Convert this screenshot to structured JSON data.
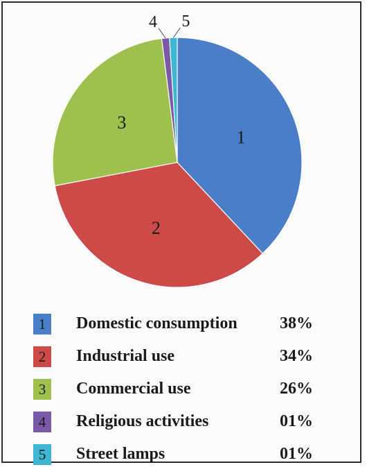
{
  "chart_data": {
    "type": "pie",
    "title": "",
    "slices": [
      {
        "id": "1",
        "label": "Domestic consumption",
        "value": 38,
        "value_label": "38%",
        "color": "#4a7ec9"
      },
      {
        "id": "2",
        "label": "Industrial use",
        "value": 34,
        "value_label": "34%",
        "color": "#cc4a48"
      },
      {
        "id": "3",
        "label": "Commercial use",
        "value": 26,
        "value_label": "26%",
        "color": "#9dc04e"
      },
      {
        "id": "4",
        "label": "Religious activities",
        "value": 1,
        "value_label": "01%",
        "color": "#7a5aa8"
      },
      {
        "id": "5",
        "label": "Street lamps",
        "value": 1,
        "value_label": "01%",
        "color": "#3fb6d3"
      }
    ],
    "legend_position": "bottom"
  }
}
